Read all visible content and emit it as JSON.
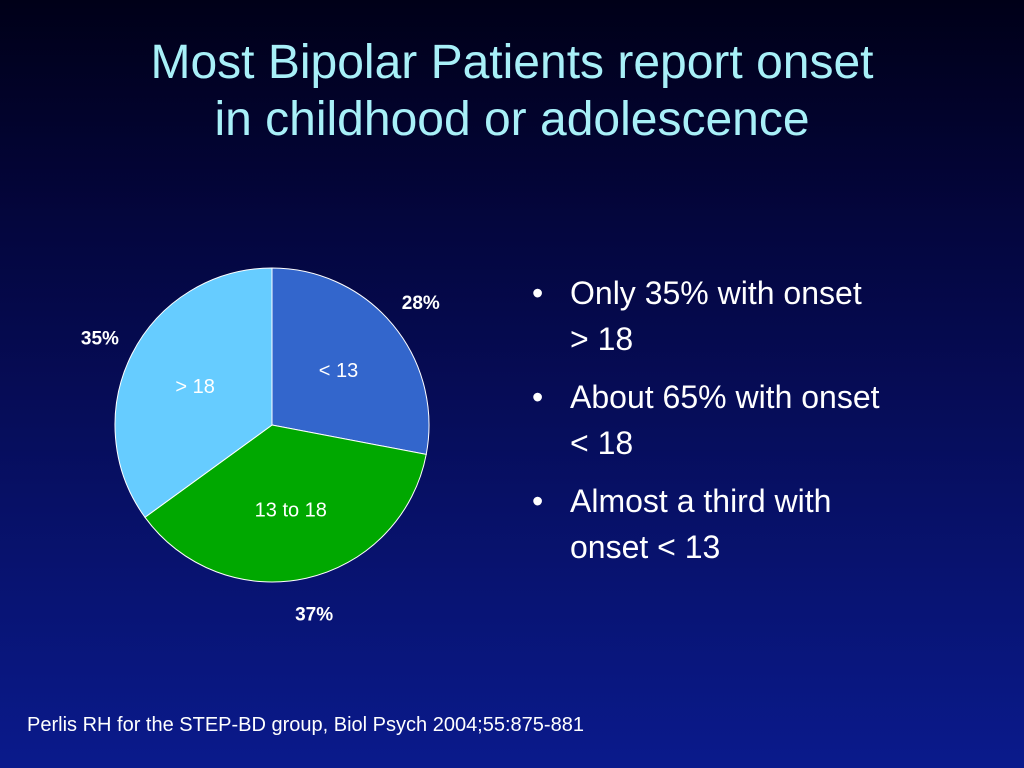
{
  "slide": {
    "title_lines": [
      "Most Bipolar Patients report onset",
      "in childhood or adolescence"
    ],
    "bullets": [
      [
        "Only 35% with onset",
        "> 18"
      ],
      [
        "About 65% with onset",
        "< 18"
      ],
      [
        "Almost a third with",
        "onset < 13"
      ]
    ],
    "bullet_symbol": "•",
    "citation": "Perlis RH for the STEP-BD group, Biol Psych 2004;55:875-881"
  },
  "chart_data": {
    "type": "pie",
    "start_angle_deg": 0,
    "direction": "clockwise",
    "slices": [
      {
        "label": "< 13",
        "value": 28,
        "value_label": "28%",
        "color": "#3366cc"
      },
      {
        "label": "13 to 18",
        "value": 37,
        "value_label": "37%",
        "color": "#00a800"
      },
      {
        "label": "> 18",
        "value": 35,
        "value_label": "35%",
        "color": "#66ccff"
      }
    ],
    "slice_border_color": "#ffffff",
    "inside_label_color": "#ffffff",
    "outside_label_color": "#ffffff"
  }
}
